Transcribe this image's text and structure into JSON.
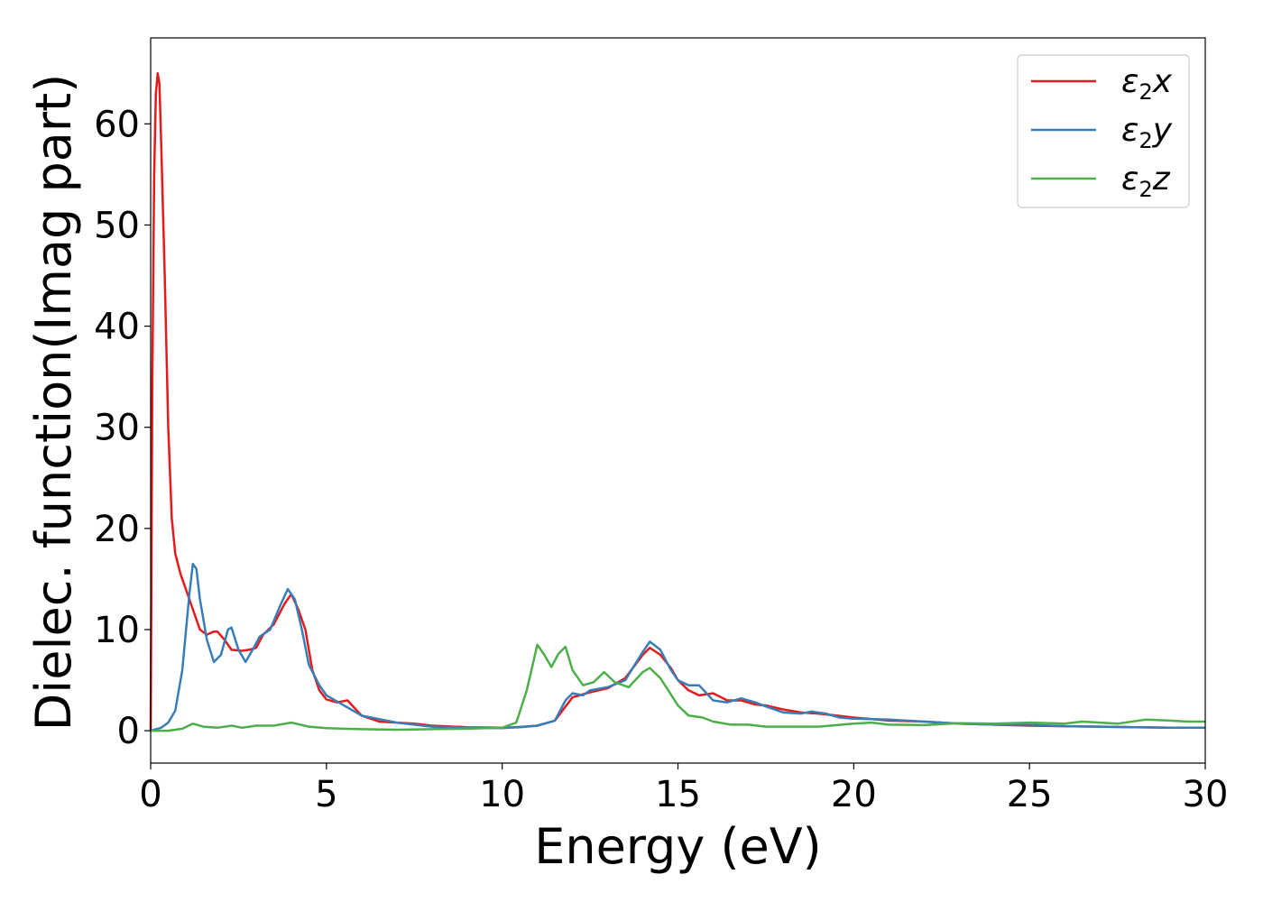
{
  "chart_data": {
    "type": "line",
    "xlabel": "Energy (eV)",
    "ylabel": "Dielec. function(Imag part)",
    "xlim": [
      0,
      30
    ],
    "ylim": [
      -3.2,
      68.5
    ],
    "xticks": [
      0,
      5,
      10,
      15,
      20,
      25,
      30
    ],
    "yticks": [
      0,
      10,
      20,
      30,
      40,
      50,
      60
    ],
    "grid": false,
    "legend_position": "top-right",
    "series": [
      {
        "name": "ε2x",
        "legend": {
          "base": "ε",
          "sub": "2",
          "tail": "x"
        },
        "color": "#e41a1c",
        "points": [
          [
            0,
            0
          ],
          [
            0.05,
            35
          ],
          [
            0.1,
            55
          ],
          [
            0.15,
            63
          ],
          [
            0.2,
            65
          ],
          [
            0.25,
            64
          ],
          [
            0.3,
            58
          ],
          [
            0.4,
            45
          ],
          [
            0.5,
            30
          ],
          [
            0.6,
            21
          ],
          [
            0.7,
            17.5
          ],
          [
            0.85,
            15.5
          ],
          [
            1.0,
            14
          ],
          [
            1.2,
            12
          ],
          [
            1.4,
            10
          ],
          [
            1.6,
            9.5
          ],
          [
            1.8,
            9.8
          ],
          [
            1.9,
            9.8
          ],
          [
            2.1,
            9
          ],
          [
            2.3,
            8
          ],
          [
            2.6,
            7.9
          ],
          [
            2.8,
            8
          ],
          [
            3.0,
            8.2
          ],
          [
            3.2,
            9.5
          ],
          [
            3.5,
            10.5
          ],
          [
            3.8,
            12.5
          ],
          [
            4.0,
            13.5
          ],
          [
            4.2,
            12
          ],
          [
            4.4,
            10
          ],
          [
            4.6,
            6
          ],
          [
            4.8,
            4
          ],
          [
            5.0,
            3.1
          ],
          [
            5.3,
            2.8
          ],
          [
            5.6,
            3
          ],
          [
            6.0,
            1.5
          ],
          [
            6.5,
            0.9
          ],
          [
            7.0,
            0.8
          ],
          [
            7.5,
            0.7
          ],
          [
            8.0,
            0.5
          ],
          [
            9.0,
            0.35
          ],
          [
            10.0,
            0.3
          ],
          [
            10.5,
            0.35
          ],
          [
            11.0,
            0.5
          ],
          [
            11.5,
            1
          ],
          [
            12.0,
            3.3
          ],
          [
            12.5,
            3.8
          ],
          [
            13.0,
            4.2
          ],
          [
            13.5,
            5.2
          ],
          [
            14.0,
            7.5
          ],
          [
            14.2,
            8.2
          ],
          [
            14.5,
            7.5
          ],
          [
            14.8,
            6.2
          ],
          [
            15.0,
            5
          ],
          [
            15.3,
            4
          ],
          [
            15.6,
            3.5
          ],
          [
            16.0,
            3.7
          ],
          [
            16.4,
            3
          ],
          [
            16.8,
            3
          ],
          [
            17.2,
            2.6
          ],
          [
            17.5,
            2.5
          ],
          [
            18,
            2.1
          ],
          [
            18.5,
            1.8
          ],
          [
            19,
            1.7
          ],
          [
            19.5,
            1.5
          ],
          [
            20,
            1.3
          ],
          [
            21,
            1.0
          ],
          [
            22,
            0.9
          ],
          [
            23,
            0.7
          ],
          [
            24,
            0.6
          ],
          [
            25,
            0.5
          ],
          [
            26,
            0.45
          ],
          [
            27,
            0.4
          ],
          [
            28,
            0.35
          ],
          [
            29,
            0.3
          ],
          [
            30,
            0.3
          ]
        ]
      },
      {
        "name": "ε2y",
        "legend": {
          "base": "ε",
          "sub": "2",
          "tail": "y"
        },
        "color": "#377eb8",
        "points": [
          [
            0,
            0
          ],
          [
            0.3,
            0.3
          ],
          [
            0.5,
            0.8
          ],
          [
            0.7,
            2
          ],
          [
            0.9,
            6
          ],
          [
            1.1,
            13.5
          ],
          [
            1.2,
            16.5
          ],
          [
            1.3,
            16
          ],
          [
            1.4,
            13
          ],
          [
            1.6,
            9
          ],
          [
            1.8,
            6.8
          ],
          [
            2.0,
            7.5
          ],
          [
            2.2,
            10
          ],
          [
            2.3,
            10.2
          ],
          [
            2.5,
            8
          ],
          [
            2.7,
            6.8
          ],
          [
            2.9,
            8
          ],
          [
            3.1,
            9.3
          ],
          [
            3.4,
            10
          ],
          [
            3.7,
            12.5
          ],
          [
            3.9,
            14
          ],
          [
            4.1,
            13
          ],
          [
            4.3,
            10
          ],
          [
            4.5,
            6.5
          ],
          [
            4.8,
            4.5
          ],
          [
            5.0,
            3.5
          ],
          [
            5.5,
            2.5
          ],
          [
            6,
            1.5
          ],
          [
            7,
            0.8
          ],
          [
            8,
            0.4
          ],
          [
            9,
            0.3
          ],
          [
            10,
            0.25
          ],
          [
            11,
            0.5
          ],
          [
            11.5,
            1
          ],
          [
            11.8,
            3
          ],
          [
            12.0,
            3.7
          ],
          [
            12.3,
            3.5
          ],
          [
            12.5,
            4
          ],
          [
            13,
            4.3
          ],
          [
            13.5,
            5
          ],
          [
            14,
            7.8
          ],
          [
            14.2,
            8.8
          ],
          [
            14.5,
            8
          ],
          [
            14.8,
            6
          ],
          [
            15,
            5
          ],
          [
            15.3,
            4.5
          ],
          [
            15.6,
            4.5
          ],
          [
            16,
            3
          ],
          [
            16.4,
            2.8
          ],
          [
            16.8,
            3.2
          ],
          [
            17.2,
            2.8
          ],
          [
            17.5,
            2.4
          ],
          [
            18,
            1.8
          ],
          [
            18.5,
            1.7
          ],
          [
            18.8,
            1.9
          ],
          [
            19.2,
            1.7
          ],
          [
            19.6,
            1.3
          ],
          [
            20,
            1.2
          ],
          [
            21,
            1.1
          ],
          [
            22,
            0.9
          ],
          [
            23,
            0.7
          ],
          [
            24,
            0.6
          ],
          [
            25,
            0.6
          ],
          [
            26,
            0.45
          ],
          [
            27,
            0.4
          ],
          [
            28,
            0.35
          ],
          [
            29,
            0.3
          ],
          [
            30,
            0.3
          ]
        ]
      },
      {
        "name": "ε2z",
        "legend": {
          "base": "ε",
          "sub": "2",
          "tail": "z"
        },
        "color": "#4daf4a",
        "points": [
          [
            0,
            0
          ],
          [
            0.5,
            0
          ],
          [
            0.9,
            0.2
          ],
          [
            1.2,
            0.7
          ],
          [
            1.5,
            0.4
          ],
          [
            1.9,
            0.3
          ],
          [
            2.3,
            0.5
          ],
          [
            2.6,
            0.3
          ],
          [
            3.0,
            0.5
          ],
          [
            3.5,
            0.5
          ],
          [
            4.0,
            0.8
          ],
          [
            4.5,
            0.4
          ],
          [
            5,
            0.25
          ],
          [
            6,
            0.15
          ],
          [
            7,
            0.1
          ],
          [
            8,
            0.15
          ],
          [
            9,
            0.2
          ],
          [
            10,
            0.3
          ],
          [
            10.4,
            0.8
          ],
          [
            10.7,
            4
          ],
          [
            11.0,
            8.5
          ],
          [
            11.2,
            7.5
          ],
          [
            11.4,
            6.3
          ],
          [
            11.6,
            7.6
          ],
          [
            11.8,
            8.3
          ],
          [
            12.0,
            6
          ],
          [
            12.3,
            4.5
          ],
          [
            12.6,
            4.8
          ],
          [
            12.9,
            5.8
          ],
          [
            13.2,
            4.8
          ],
          [
            13.6,
            4.3
          ],
          [
            14.0,
            5.8
          ],
          [
            14.2,
            6.2
          ],
          [
            14.5,
            5.2
          ],
          [
            15.0,
            2.5
          ],
          [
            15.3,
            1.5
          ],
          [
            15.7,
            1.3
          ],
          [
            16.0,
            0.9
          ],
          [
            16.5,
            0.6
          ],
          [
            17,
            0.6
          ],
          [
            17.5,
            0.4
          ],
          [
            18,
            0.4
          ],
          [
            19,
            0.4
          ],
          [
            20,
            0.7
          ],
          [
            20.5,
            0.8
          ],
          [
            21,
            0.6
          ],
          [
            22,
            0.55
          ],
          [
            23,
            0.75
          ],
          [
            24,
            0.7
          ],
          [
            25,
            0.8
          ],
          [
            26,
            0.7
          ],
          [
            26.5,
            0.9
          ],
          [
            27.5,
            0.7
          ],
          [
            28.3,
            1.1
          ],
          [
            29,
            1.0
          ],
          [
            29.5,
            0.9
          ],
          [
            30,
            0.9
          ]
        ]
      }
    ]
  }
}
